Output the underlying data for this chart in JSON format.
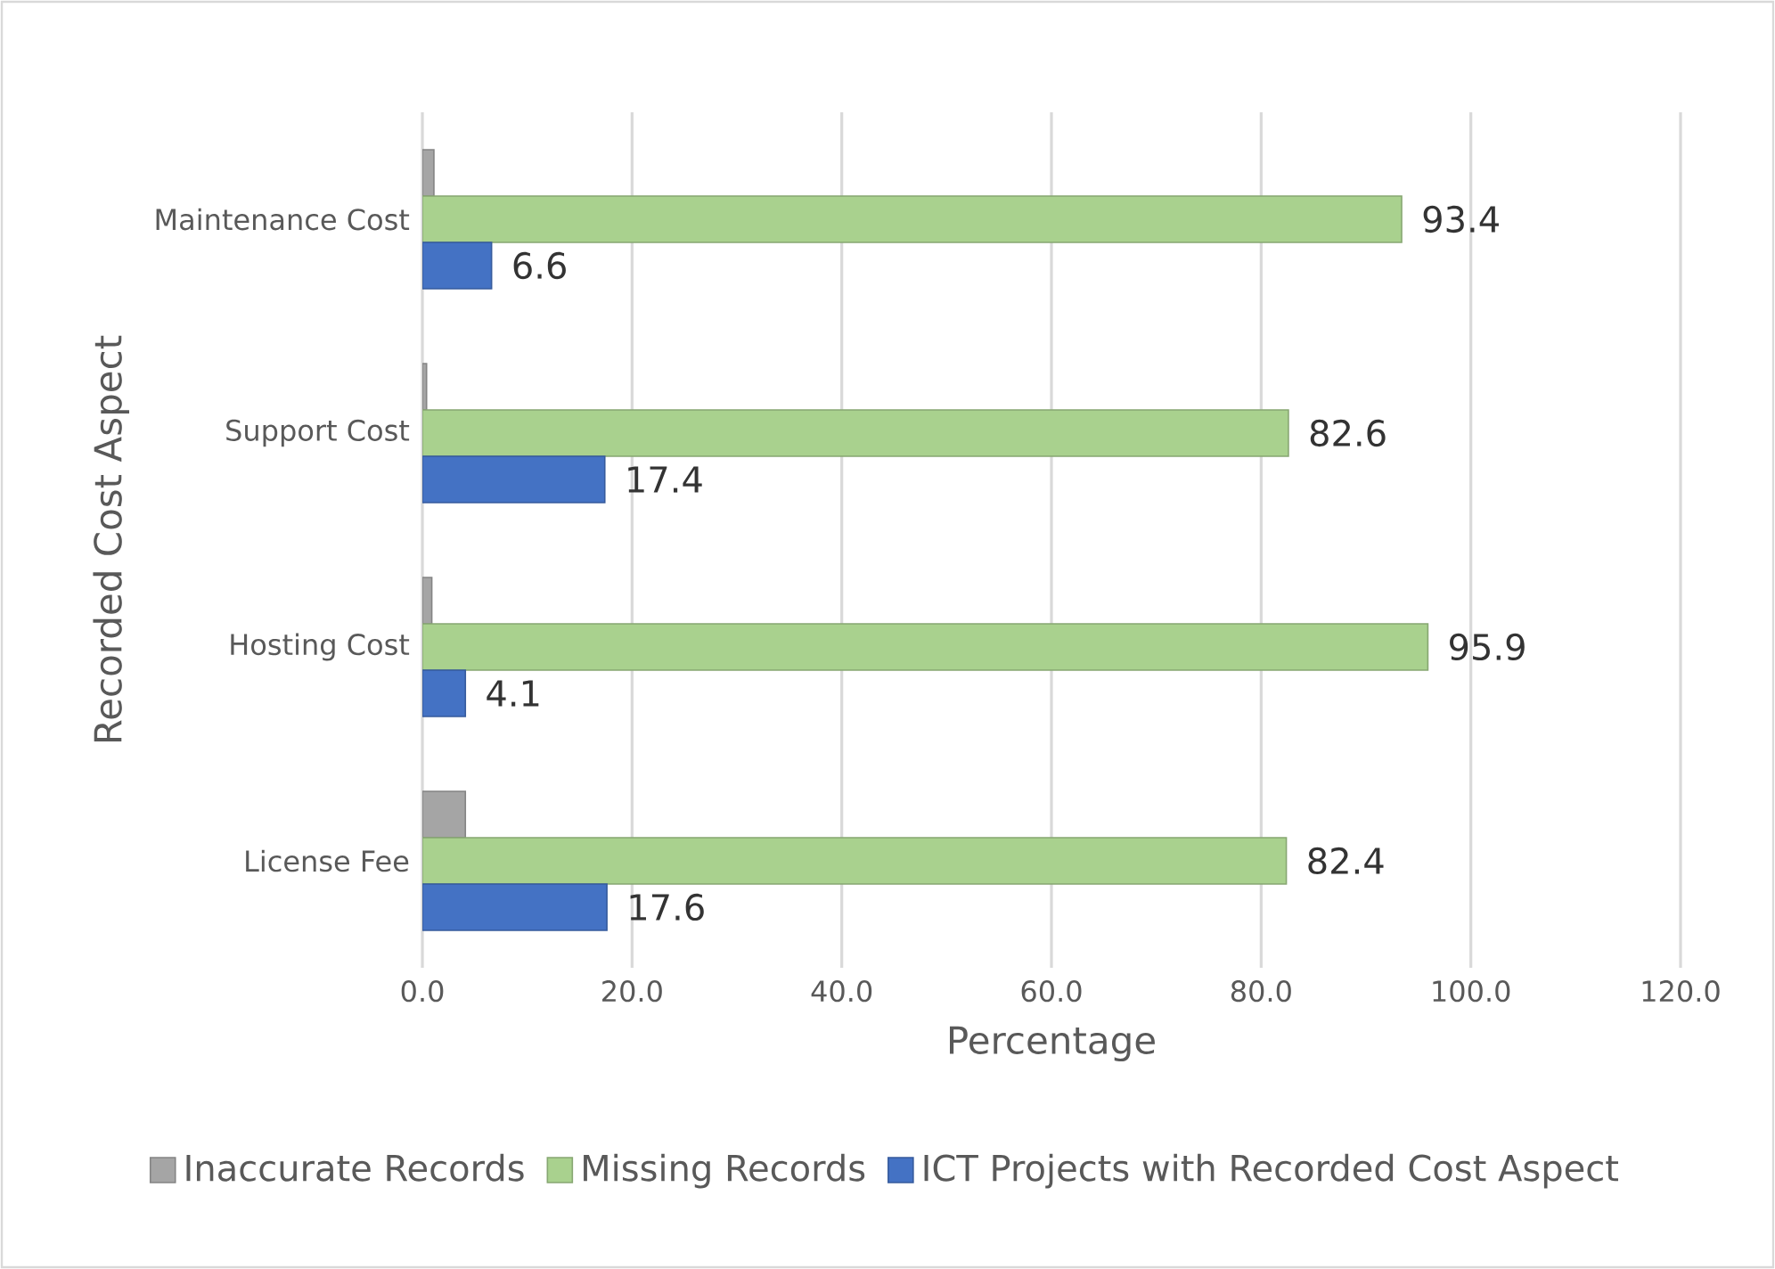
{
  "chart_data": {
    "type": "bar",
    "orientation": "horizontal",
    "xlabel": "Percentage",
    "ylabel": "Recorded Cost Aspect",
    "categories": [
      "Maintenance Cost",
      "Support Cost",
      "Hosting Cost",
      "License Fee"
    ],
    "series": [
      {
        "name": "Inaccurate Records",
        "color": "#a5a5a5",
        "values": [
          1.1,
          0.4,
          0.9,
          4.1
        ]
      },
      {
        "name": "Missing Records",
        "color": "#a9d18e",
        "values": [
          93.4,
          82.6,
          95.9,
          82.4
        ],
        "value_labels": [
          "93.4",
          "82.6",
          "95.9",
          "82.4"
        ]
      },
      {
        "name": "ICT Projects with Recorded Cost Aspect",
        "color": "#4472c4",
        "values": [
          6.6,
          17.4,
          4.1,
          17.6
        ],
        "value_labels": [
          "6.6",
          "17.4",
          "4.1",
          "17.6"
        ]
      }
    ],
    "xlim": [
      0,
      120
    ],
    "xticks": [
      {
        "value": 0,
        "label": "0.0"
      },
      {
        "value": 20,
        "label": "20.0"
      },
      {
        "value": 40,
        "label": "40.0"
      },
      {
        "value": 60,
        "label": "60.0"
      },
      {
        "value": 80,
        "label": "80.0"
      },
      {
        "value": 100,
        "label": "100.0"
      },
      {
        "value": 120,
        "label": "120.0"
      }
    ],
    "grid": "x",
    "legend": "bottom"
  }
}
